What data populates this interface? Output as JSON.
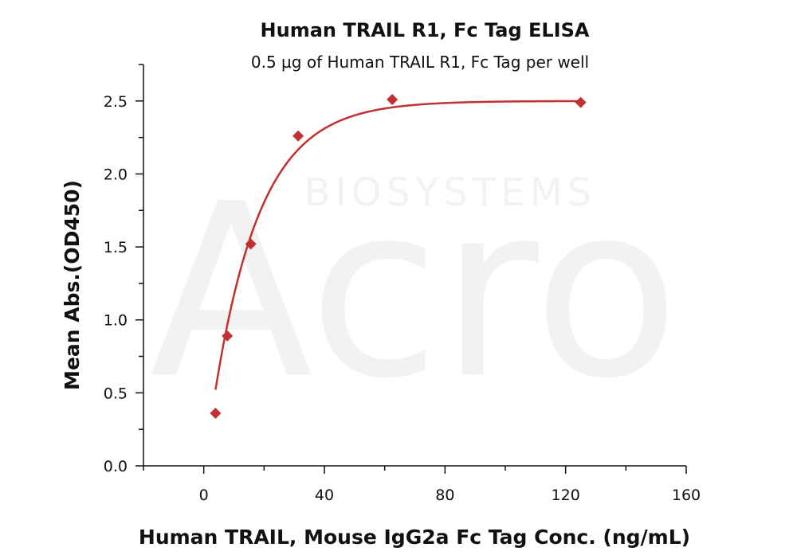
{
  "chart_data": {
    "type": "scatter",
    "title": "Human TRAIL R1, Fc Tag ELISA",
    "subtitle": "0.5 µg of Human TRAIL R1, Fc Tag per well",
    "xlabel": "Human TRAIL, Mouse IgG2a Fc Tag Conc. (ng/mL)",
    "ylabel": "Mean Abs.(OD450)",
    "xlim": [
      -20,
      160
    ],
    "ylim": [
      0,
      2.75
    ],
    "x_ticks": [
      0,
      40,
      80,
      120,
      160
    ],
    "y_ticks": [
      0.0,
      0.5,
      1.0,
      1.5,
      2.0,
      2.5
    ],
    "x_tick_labels": [
      "0",
      "40",
      "80",
      "120",
      "160"
    ],
    "y_tick_labels": [
      "0.0",
      "0.5",
      "1.0",
      "1.5",
      "2.0",
      "2.5"
    ],
    "grid": false,
    "series": [
      {
        "x": [
          3.9,
          7.8,
          15.6,
          31.3,
          62.5,
          125
        ],
        "y": [
          0.36,
          0.89,
          1.52,
          2.26,
          2.51,
          2.49
        ],
        "color": "#c0312f",
        "marker": "diamond",
        "fit_curve": true
      }
    ]
  },
  "watermark": {
    "brand": "Acro",
    "tagline": "BIOSYSTEMS"
  }
}
